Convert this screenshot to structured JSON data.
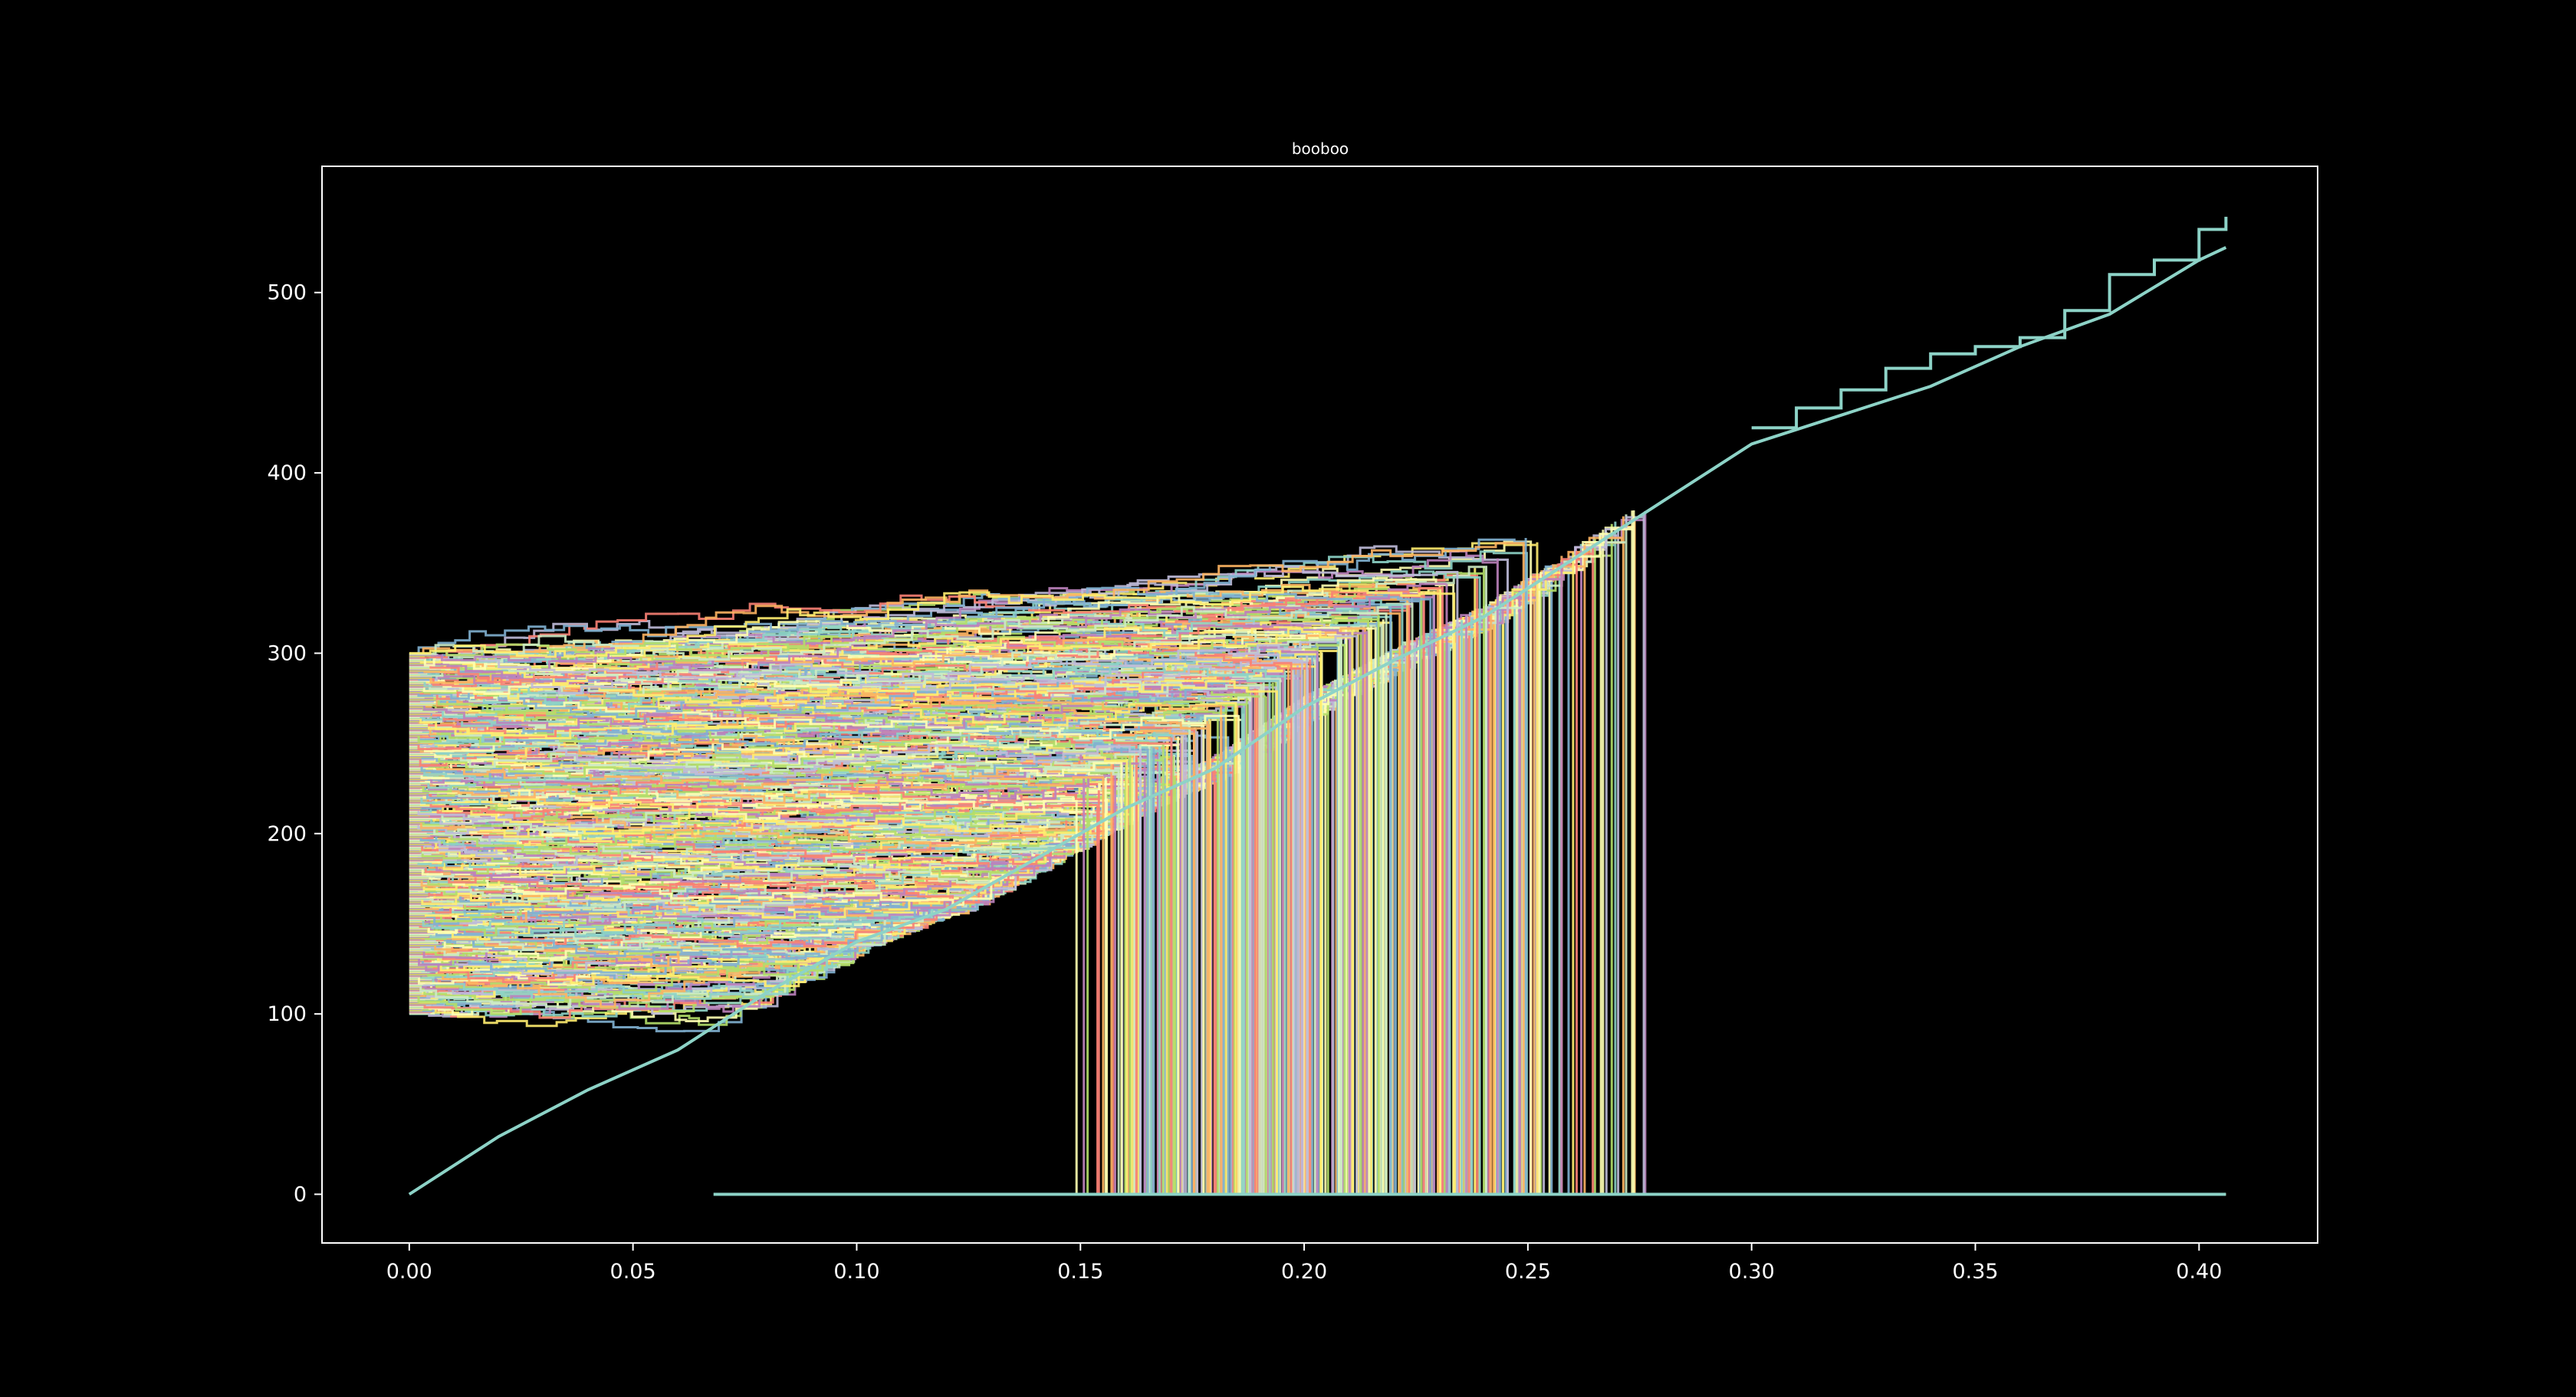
{
  "chart_data": {
    "type": "line",
    "title": "booboo",
    "xlabel": "",
    "ylabel": "",
    "xlim": [
      -0.0195,
      0.4265
    ],
    "ylim": [
      -27,
      570
    ],
    "x_ticks": [
      "0.00",
      "0.05",
      "0.10",
      "0.15",
      "0.20",
      "0.25",
      "0.30",
      "0.35",
      "0.40"
    ],
    "y_ticks": [
      "0",
      "100",
      "200",
      "300",
      "400",
      "500"
    ],
    "grid": false,
    "legend": "none",
    "background": "#000000",
    "axes_color": "#ffffff",
    "palette": [
      "#8dd3c7",
      "#feffb3",
      "#bfbbd9",
      "#fa8174",
      "#81b1d2",
      "#fdb462",
      "#b3de69",
      "#bc82bd",
      "#ccebc4",
      "#ffed6f"
    ],
    "series_count_estimate": 500,
    "reference_line": {
      "color": "#8dd3c7",
      "x": [
        0.0,
        0.02,
        0.04,
        0.06,
        0.08,
        0.1,
        0.12,
        0.14,
        0.16,
        0.18,
        0.2,
        0.22,
        0.24,
        0.26,
        0.28,
        0.3,
        0.32,
        0.34,
        0.36,
        0.38,
        0.4,
        0.406
      ],
      "values": [
        0,
        32,
        58,
        80,
        112,
        140,
        158,
        186,
        214,
        236,
        270,
        296,
        320,
        352,
        384,
        416,
        432,
        448,
        470,
        488,
        518,
        525
      ]
    },
    "upper_envelope_line": {
      "color": "#8dd3c7",
      "x": [
        0.3,
        0.31,
        0.32,
        0.33,
        0.34,
        0.35,
        0.36,
        0.37,
        0.38,
        0.39,
        0.4,
        0.406
      ],
      "values": [
        425,
        436,
        446,
        458,
        466,
        470,
        475,
        490,
        510,
        518,
        535,
        542
      ]
    },
    "random_walks": {
      "start_y_range": [
        100,
        300
      ],
      "start_x": 0.0,
      "drop_to_zero_x_range": [
        0.068,
        0.304
      ],
      "end_x": 0.406,
      "final_value": 0
    }
  }
}
